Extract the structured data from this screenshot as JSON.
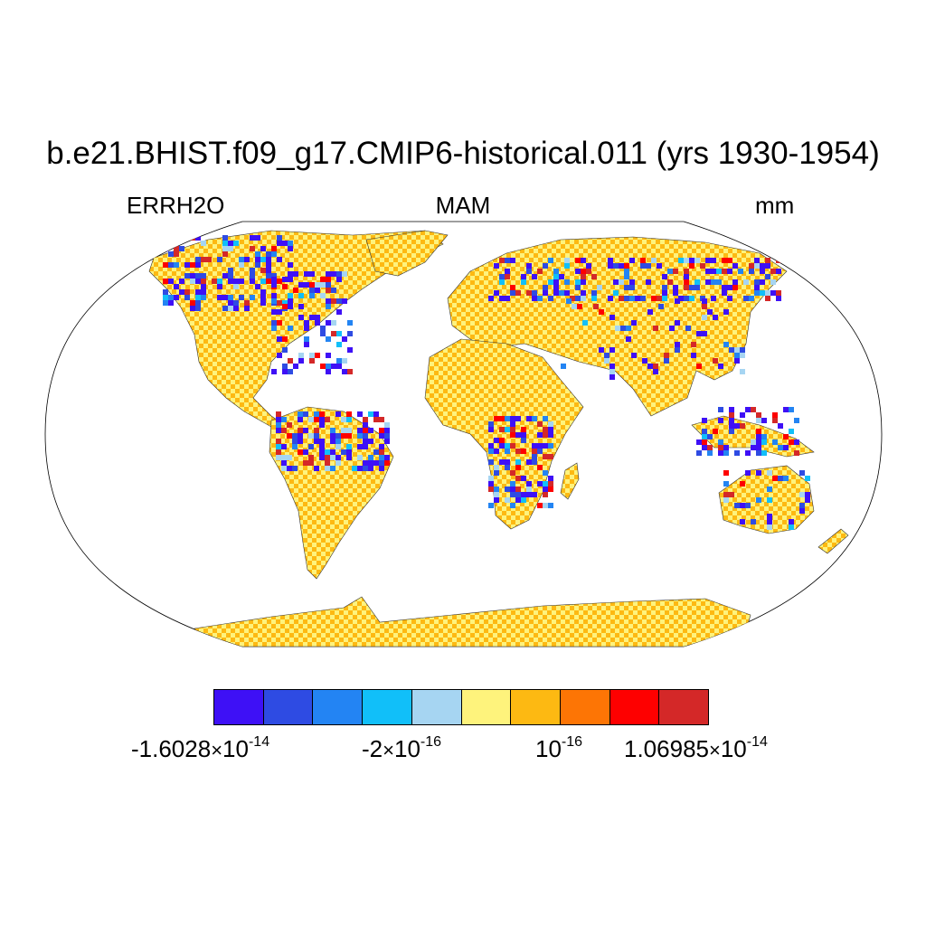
{
  "title": "b.e21.BHIST.f09_g17.CMIP6-historical.011 (yrs 1930-1954)",
  "subtitle": {
    "left": "ERRH2O",
    "center": "MAM",
    "right": "mm"
  },
  "colorbar": {
    "colors": [
      "#3e10f6",
      "#2e4be3",
      "#2384f3",
      "#11bff9",
      "#a6d5f2",
      "#fef37c",
      "#fdb912",
      "#fd7505",
      "#fe0000",
      "#d42828"
    ],
    "labels": [
      {
        "mantissa": "-1.6028",
        "times": "×",
        "base": "10",
        "exp": "-14"
      },
      {
        "mantissa": "-2",
        "times": "×",
        "base": "10",
        "exp": "-16"
      },
      {
        "mantissa": "",
        "times": "",
        "base": "10",
        "exp": "-16"
      },
      {
        "mantissa": "1.06985",
        "times": "×",
        "base": "10",
        "exp": "-14"
      }
    ]
  },
  "map": {
    "projection": "robinson",
    "land_dominant_colors": [
      "#fef37c",
      "#fdb912"
    ]
  }
}
